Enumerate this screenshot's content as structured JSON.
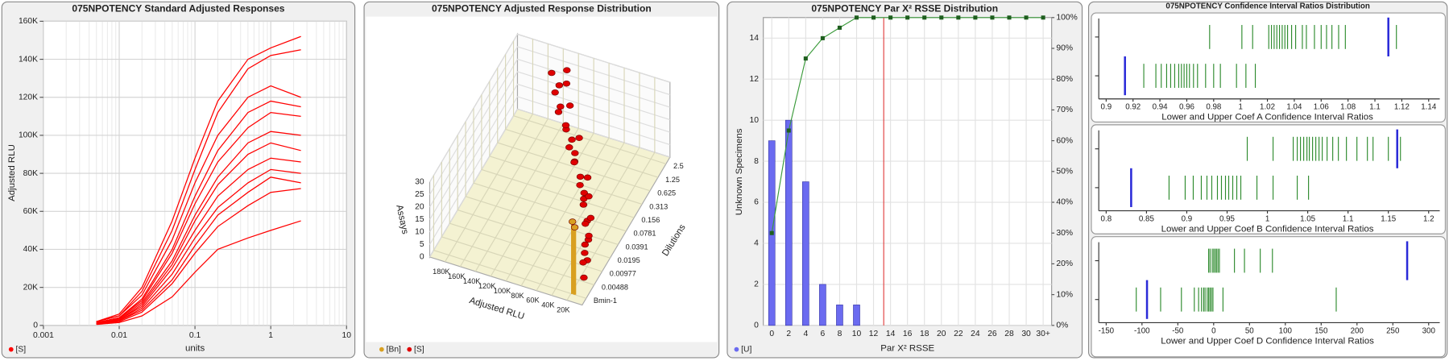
{
  "chart_data": [
    {
      "type": "line",
      "title": "075NPOTENCY Standard Adjusted Responses",
      "x_label": "units",
      "y_label": "Adjusted RLU",
      "log_x": true,
      "grid": true,
      "x": [
        0.005,
        0.01,
        0.02,
        0.05,
        0.1,
        0.2,
        0.5,
        1,
        2.5
      ],
      "xlim": [
        0.001,
        10
      ],
      "xticks": [
        0.001,
        0.01,
        0.1,
        1,
        10
      ],
      "ylim": [
        0,
        160000
      ],
      "yticks": [
        0,
        {
          "value": 20000,
          "label": "20K"
        },
        {
          "value": 40000,
          "label": "40K"
        },
        {
          "value": 60000,
          "label": "60K"
        },
        {
          "value": 80000,
          "label": "80K"
        },
        {
          "value": 100000,
          "label": "100K"
        },
        {
          "value": 120000,
          "label": "120K"
        },
        {
          "value": 140000,
          "label": "140K"
        },
        {
          "value": 160000,
          "label": "160K"
        }
      ],
      "series": [
        {
          "name": "[S]",
          "color": "#ff0000",
          "values": [
            [
              2000,
              6000,
              20000,
              55000,
              88000,
              118000,
              140000,
              146000,
              152000
            ],
            [
              2000,
              5000,
              18000,
              50000,
              82000,
              112000,
              135000,
              142000,
              145000
            ],
            [
              2000,
              5000,
              16000,
              45000,
              75000,
              100000,
              120000,
              126000,
              120000
            ],
            [
              1500,
              4000,
              14000,
              40000,
              68000,
              92000,
              112000,
              118000,
              115000
            ],
            [
              1500,
              4000,
              13000,
              38000,
              64000,
              86000,
              104000,
              112000,
              110000
            ],
            [
              1000,
              3500,
              12000,
              34000,
              58000,
              78000,
              96000,
              102000,
              100000
            ],
            [
              1000,
              3000,
              11000,
              32000,
              55000,
              74000,
              90000,
              96000,
              92000
            ],
            [
              1000,
              3000,
              10000,
              30000,
              50000,
              68000,
              82000,
              88000,
              86000
            ],
            [
              1000,
              2500,
              9000,
              27000,
              46000,
              62000,
              75000,
              82000,
              80000
            ],
            [
              800,
              2500,
              8000,
              24000,
              42000,
              58000,
              70000,
              78000,
              75000
            ],
            [
              800,
              2000,
              7000,
              22000,
              38000,
              52000,
              63000,
              70000,
              72000
            ],
            [
              500,
              1500,
              5000,
              15000,
              28000,
              40000,
              46000,
              50000,
              55000
            ]
          ]
        }
      ]
    },
    {
      "type": "scatter3d",
      "title": "075NPOTENCY Adjusted Response Distribution",
      "x_label": "Adjusted RLU",
      "y_label": "Dilutions",
      "z_label": "Assays",
      "categories": [
        "2.5",
        "1.25",
        "0.625",
        "0.313",
        "0.156",
        "0.0781",
        "0.0391",
        "0.0195",
        "0.00977",
        "0.00488",
        "Bmin-1"
      ],
      "xlim": [
        0,
        200000
      ],
      "xticks": [
        {
          "value": 180000,
          "label": "180K"
        },
        {
          "value": 160000,
          "label": "160K"
        },
        {
          "value": 140000,
          "label": "140K"
        },
        {
          "value": 120000,
          "label": "120K"
        },
        {
          "value": 100000,
          "label": "100K"
        },
        {
          "value": 80000,
          "label": "80K"
        },
        {
          "value": 60000,
          "label": "60K"
        },
        {
          "value": 40000,
          "label": "40K"
        },
        {
          "value": 20000,
          "label": "20K"
        }
      ],
      "zlim": [
        0,
        30
      ],
      "zticks": [
        0,
        5,
        10,
        15,
        20,
        25,
        30
      ],
      "series": [
        {
          "name": "[Bn]",
          "color": "#d9a020",
          "values": [
            [],
            [],
            [],
            [],
            [],
            [],
            [],
            [],
            [],
            [],
            [
              [
                18000,
                29
              ],
              [
                15000,
                27
              ]
            ]
          ]
        },
        {
          "name": "[S]",
          "color": "#e00000",
          "values": [
            [
              [
                150000,
                22
              ],
              [
                140000,
                18
              ],
              [
                130000,
                25
              ]
            ],
            [
              [
                135000,
                21
              ],
              [
                128000,
                16
              ],
              [
                120000,
                26
              ]
            ],
            [
              [
                120000,
                20
              ],
              [
                110000,
                14
              ],
              [
                105000,
                24
              ]
            ],
            [
              [
                100000,
                22
              ],
              [
                92000,
                17
              ],
              [
                88000,
                12
              ]
            ],
            [
              [
                85000,
                20
              ],
              [
                78000,
                15
              ],
              [
                72000,
                25
              ]
            ],
            [
              [
                68000,
                21
              ],
              [
                60000,
                16
              ],
              [
                55000,
                10
              ]
            ],
            [
              [
                50000,
                19
              ],
              [
                45000,
                14
              ],
              [
                40000,
                23
              ]
            ],
            [
              [
                35000,
                18
              ],
              [
                30000,
                12
              ],
              [
                28000,
                22
              ]
            ],
            [
              [
                22000,
                17
              ],
              [
                18000,
                11
              ],
              [
                15000,
                20
              ]
            ],
            [
              [
                12000,
                15
              ],
              [
                9000,
                9
              ],
              [
                7000,
                19
              ]
            ],
            [
              [
                4000,
                14
              ],
              [
                3000,
                8
              ],
              [
                2000,
                18
              ]
            ]
          ]
        }
      ]
    },
    {
      "type": "bar_line",
      "title": "075NPOTENCY Par X² RSSE Distribution",
      "x_label": "Par X² RSSE",
      "y_label": "Unknown Specimens",
      "grid": true,
      "categories": [
        "0",
        "2",
        "4",
        "6",
        "8",
        "10",
        "12",
        "14",
        "16",
        "18",
        "20",
        "22",
        "24",
        "26",
        "28",
        "30",
        "30+"
      ],
      "ylim": [
        0,
        15
      ],
      "yticks": [
        0,
        2,
        4,
        6,
        8,
        10,
        12,
        14
      ],
      "y2lim": [
        0,
        100
      ],
      "y2ticks": [
        {
          "value": 0,
          "label": "0%"
        },
        {
          "value": 10,
          "label": "10%"
        },
        {
          "value": 20,
          "label": "20%"
        },
        {
          "value": 30,
          "label": "30%"
        },
        {
          "value": 40,
          "label": "40%"
        },
        {
          "value": 50,
          "label": "50%"
        },
        {
          "value": 60,
          "label": "60%"
        },
        {
          "value": 70,
          "label": "70%"
        },
        {
          "value": 80,
          "label": "80%"
        },
        {
          "value": 90,
          "label": "90%"
        },
        {
          "value": 100,
          "label": "100%"
        }
      ],
      "series": [
        {
          "name": "[U]",
          "color": "#6b6bf0",
          "values": [
            9,
            10,
            7,
            2,
            1,
            1,
            0,
            0,
            0,
            0,
            0,
            0,
            0,
            0,
            0,
            0,
            0
          ]
        },
        {
          "color": "#3a9a3a",
          "axis": "y2",
          "values": [
            30,
            63.3,
            86.7,
            93.3,
            96.7,
            100,
            100,
            100,
            100,
            100,
            100,
            100,
            100,
            100,
            100,
            100,
            100
          ]
        }
      ],
      "reference_line": 13.2,
      "reference_color": "#e04040"
    },
    {
      "type": "strip",
      "title": "075NPOTENCY Confidence Interval Ratios Distribution",
      "value_color": "#2e8b2e",
      "marker_color": "#2a2ad8",
      "subplots": [
        {
          "x_label": "Lower and Upper Coef A Confidence Interval Ratios",
          "xlim": [
            0.9,
            1.14
          ],
          "xticks": [
            0.9,
            0.92,
            0.94,
            0.96,
            0.98,
            1,
            1.02,
            1.04,
            1.06,
            1.08,
            1.1,
            1.12,
            1.14
          ],
          "rows": [
            {
              "values": [
                0.977,
                1.001,
                1.009,
                1.021,
                1.023,
                1.025,
                1.027,
                1.029,
                1.031,
                1.033,
                1.035,
                1.038,
                1.041,
                1.046,
                1.049,
                1.055,
                1.06,
                1.064,
                1.068,
                1.073,
                1.078,
                1.116
              ],
              "marker": 1.11
            },
            {
              "values": [
                0.928,
                0.937,
                0.941,
                0.945,
                0.948,
                0.951,
                0.954,
                0.956,
                0.958,
                0.96,
                0.962,
                0.965,
                0.968,
                0.974,
                0.98,
                0.985,
                0.997,
                1.004,
                1.011
              ],
              "marker": 0.914
            }
          ]
        },
        {
          "x_label": "Lower and Upper Coef B Confidence Interval Ratios",
          "xlim": [
            0.8,
            1.2
          ],
          "xticks": [
            0.8,
            0.85,
            0.9,
            0.95,
            1,
            1.05,
            1.1,
            1.15,
            1.2
          ],
          "rows": [
            {
              "values": [
                0.975,
                1.007,
                1.032,
                1.037,
                1.041,
                1.045,
                1.049,
                1.052,
                1.056,
                1.06,
                1.064,
                1.068,
                1.074,
                1.081,
                1.088,
                1.098,
                1.111,
                1.124,
                1.131,
                1.15,
                1.165
              ],
              "marker": 1.161
            },
            {
              "values": [
                0.878,
                0.898,
                0.908,
                0.918,
                0.925,
                0.931,
                0.938,
                0.943,
                0.948,
                0.952,
                0.957,
                0.962,
                0.967,
                0.987,
                1.007,
                1.037,
                1.051
              ],
              "marker": 0.831
            }
          ]
        },
        {
          "x_label": "Lower and Upper Coef D Confidence Interval Ratios",
          "xlim": [
            -150,
            300
          ],
          "xticks": [
            -150,
            -100,
            -50,
            0,
            50,
            100,
            150,
            200,
            250,
            300
          ],
          "rows": [
            {
              "values": [
                -7,
                -5,
                -2,
                0,
                2,
                4,
                6,
                8,
                29,
                43,
                65,
                82
              ],
              "marker": 270
            },
            {
              "values": [
                -108,
                -74,
                -45,
                -27,
                -21,
                -17,
                -14,
                -12,
                -9,
                -7,
                -5,
                -3,
                -1,
                13,
                171
              ],
              "marker": -93
            }
          ]
        }
      ]
    }
  ]
}
